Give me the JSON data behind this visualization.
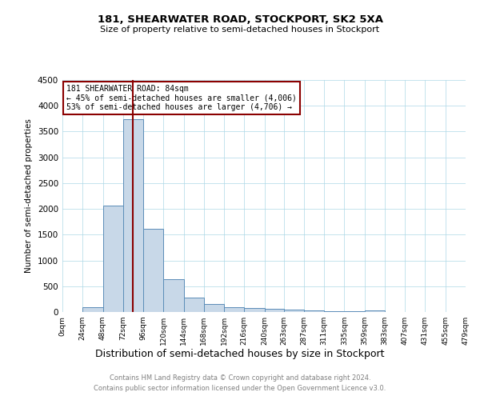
{
  "title": "181, SHEARWATER ROAD, STOCKPORT, SK2 5XA",
  "subtitle": "Size of property relative to semi-detached houses in Stockport",
  "xlabel": "Distribution of semi-detached houses by size in Stockport",
  "ylabel": "Number of semi-detached properties",
  "footnote1": "Contains HM Land Registry data © Crown copyright and database right 2024.",
  "footnote2": "Contains public sector information licensed under the Open Government Licence v3.0.",
  "property_size": 84,
  "annotation_title": "181 SHEARWATER ROAD: 84sqm",
  "annotation_line1": "← 45% of semi-detached houses are smaller (4,006)",
  "annotation_line2": "53% of semi-detached houses are larger (4,706) →",
  "bar_color": "#c8d8e8",
  "bar_edge_color": "#5b8db8",
  "vline_color": "#8b0000",
  "annotation_box_color": "#8b0000",
  "ylim": [
    0,
    4500
  ],
  "bin_edges": [
    0,
    24,
    48,
    72,
    96,
    120,
    144,
    168,
    192,
    216,
    240,
    263,
    287,
    311,
    335,
    359,
    383,
    407,
    431,
    455,
    479
  ],
  "bin_counts": [
    0,
    90,
    2060,
    3740,
    1620,
    630,
    285,
    155,
    100,
    80,
    55,
    40,
    30,
    20,
    20,
    35,
    0,
    0,
    0,
    0
  ],
  "tick_labels": [
    "0sqm",
    "24sqm",
    "48sqm",
    "72sqm",
    "96sqm",
    "120sqm",
    "144sqm",
    "168sqm",
    "192sqm",
    "216sqm",
    "240sqm",
    "263sqm",
    "287sqm",
    "311sqm",
    "335sqm",
    "359sqm",
    "383sqm",
    "407sqm",
    "431sqm",
    "455sqm",
    "479sqm"
  ]
}
